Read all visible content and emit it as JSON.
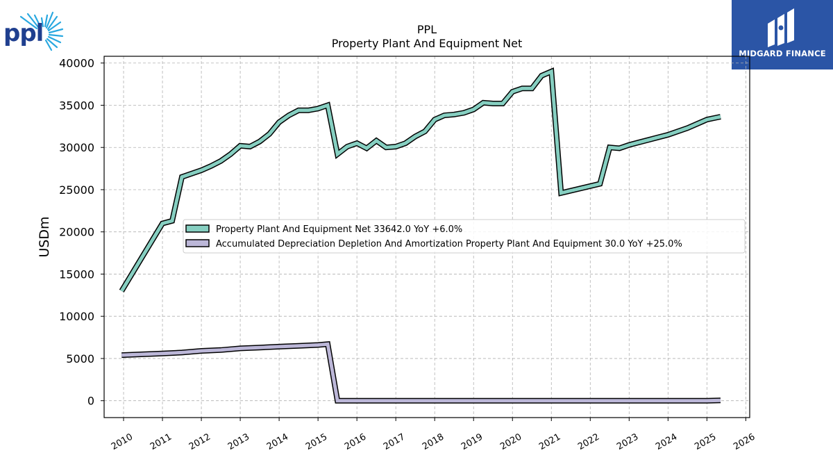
{
  "logos": {
    "left_logo_text": "ppl",
    "right_logo_text": "MIDGARD FINANCE"
  },
  "colors": {
    "series_1": "#86cfc1",
    "series_2": "#bcb7d8",
    "outline": "#000000",
    "grid": "#b0b0b0",
    "brand_box": "#2b55a6"
  },
  "chart_data": {
    "type": "line",
    "title": "PPL",
    "subtitle": "Property Plant And Equipment Net",
    "xlabel": "",
    "ylabel": "USDm",
    "xlim": [
      2009.5,
      2026.1
    ],
    "ylim": [
      -2000,
      40800
    ],
    "x_ticks": [
      "2010",
      "2011",
      "2012",
      "2013",
      "2014",
      "2015",
      "2016",
      "2017",
      "2018",
      "2019",
      "2020",
      "2021",
      "2022",
      "2023",
      "2024",
      "2025",
      "2026"
    ],
    "y_ticks": [
      0,
      5000,
      10000,
      15000,
      20000,
      25000,
      30000,
      35000,
      40000
    ],
    "grid": true,
    "legend_position": "center",
    "series": [
      {
        "name": "Property Plant And Equipment Net",
        "legend_label": "Property Plant And Equipment Net  33642.0 YoY +6.0%",
        "x": [
          2009.95,
          2011.0,
          2011.25,
          2011.5,
          2012.0,
          2012.25,
          2012.5,
          2012.75,
          2013.0,
          2013.25,
          2013.5,
          2013.75,
          2014.0,
          2014.25,
          2014.5,
          2014.75,
          2015.0,
          2015.25,
          2015.5,
          2015.75,
          2016.0,
          2016.25,
          2016.5,
          2016.75,
          2017.0,
          2017.25,
          2017.5,
          2017.75,
          2018.0,
          2018.25,
          2018.5,
          2018.75,
          2019.0,
          2019.25,
          2019.5,
          2019.75,
          2020.0,
          2020.25,
          2020.5,
          2020.75,
          2021.0,
          2021.25,
          2022.25,
          2022.5,
          2022.75,
          2023.0,
          2023.25,
          2023.5,
          2023.75,
          2024.0,
          2024.25,
          2024.5,
          2024.75,
          2025.0,
          2025.35
        ],
        "values": [
          13000,
          21000,
          21300,
          26500,
          27300,
          27800,
          28400,
          29200,
          30200,
          30100,
          30700,
          31600,
          33000,
          33800,
          34400,
          34400,
          34600,
          35000,
          29200,
          30100,
          30500,
          29900,
          30800,
          30000,
          30100,
          30500,
          31300,
          31900,
          33300,
          33800,
          33900,
          34100,
          34500,
          35300,
          35200,
          35200,
          36600,
          37000,
          37000,
          38500,
          39000,
          24600,
          25700,
          30000,
          29900,
          30300,
          30600,
          30900,
          31200,
          31500,
          31900,
          32300,
          32800,
          33300,
          33642
        ]
      },
      {
        "name": "Accumulated Depreciation Depletion And Amortization Property Plant And Equipment",
        "legend_label": "Accumulated Depreciation Depletion And Amortization Property Plant And Equipment  30.0 YoY +25.0%",
        "x": [
          2009.95,
          2010.5,
          2011.0,
          2011.5,
          2012.0,
          2012.5,
          2013.0,
          2013.5,
          2014.0,
          2014.5,
          2015.0,
          2015.25,
          2015.5,
          2016.0,
          2017.0,
          2018.0,
          2019.0,
          2020.0,
          2021.0,
          2021.25,
          2022.0,
          2023.0,
          2024.0,
          2025.0,
          2025.35
        ],
        "values": [
          5400,
          5500,
          5600,
          5700,
          5900,
          6000,
          6200,
          6300,
          6400,
          6500,
          6600,
          6700,
          0,
          0,
          0,
          0,
          0,
          0,
          0,
          0,
          0,
          0,
          0,
          0,
          30
        ]
      }
    ]
  }
}
